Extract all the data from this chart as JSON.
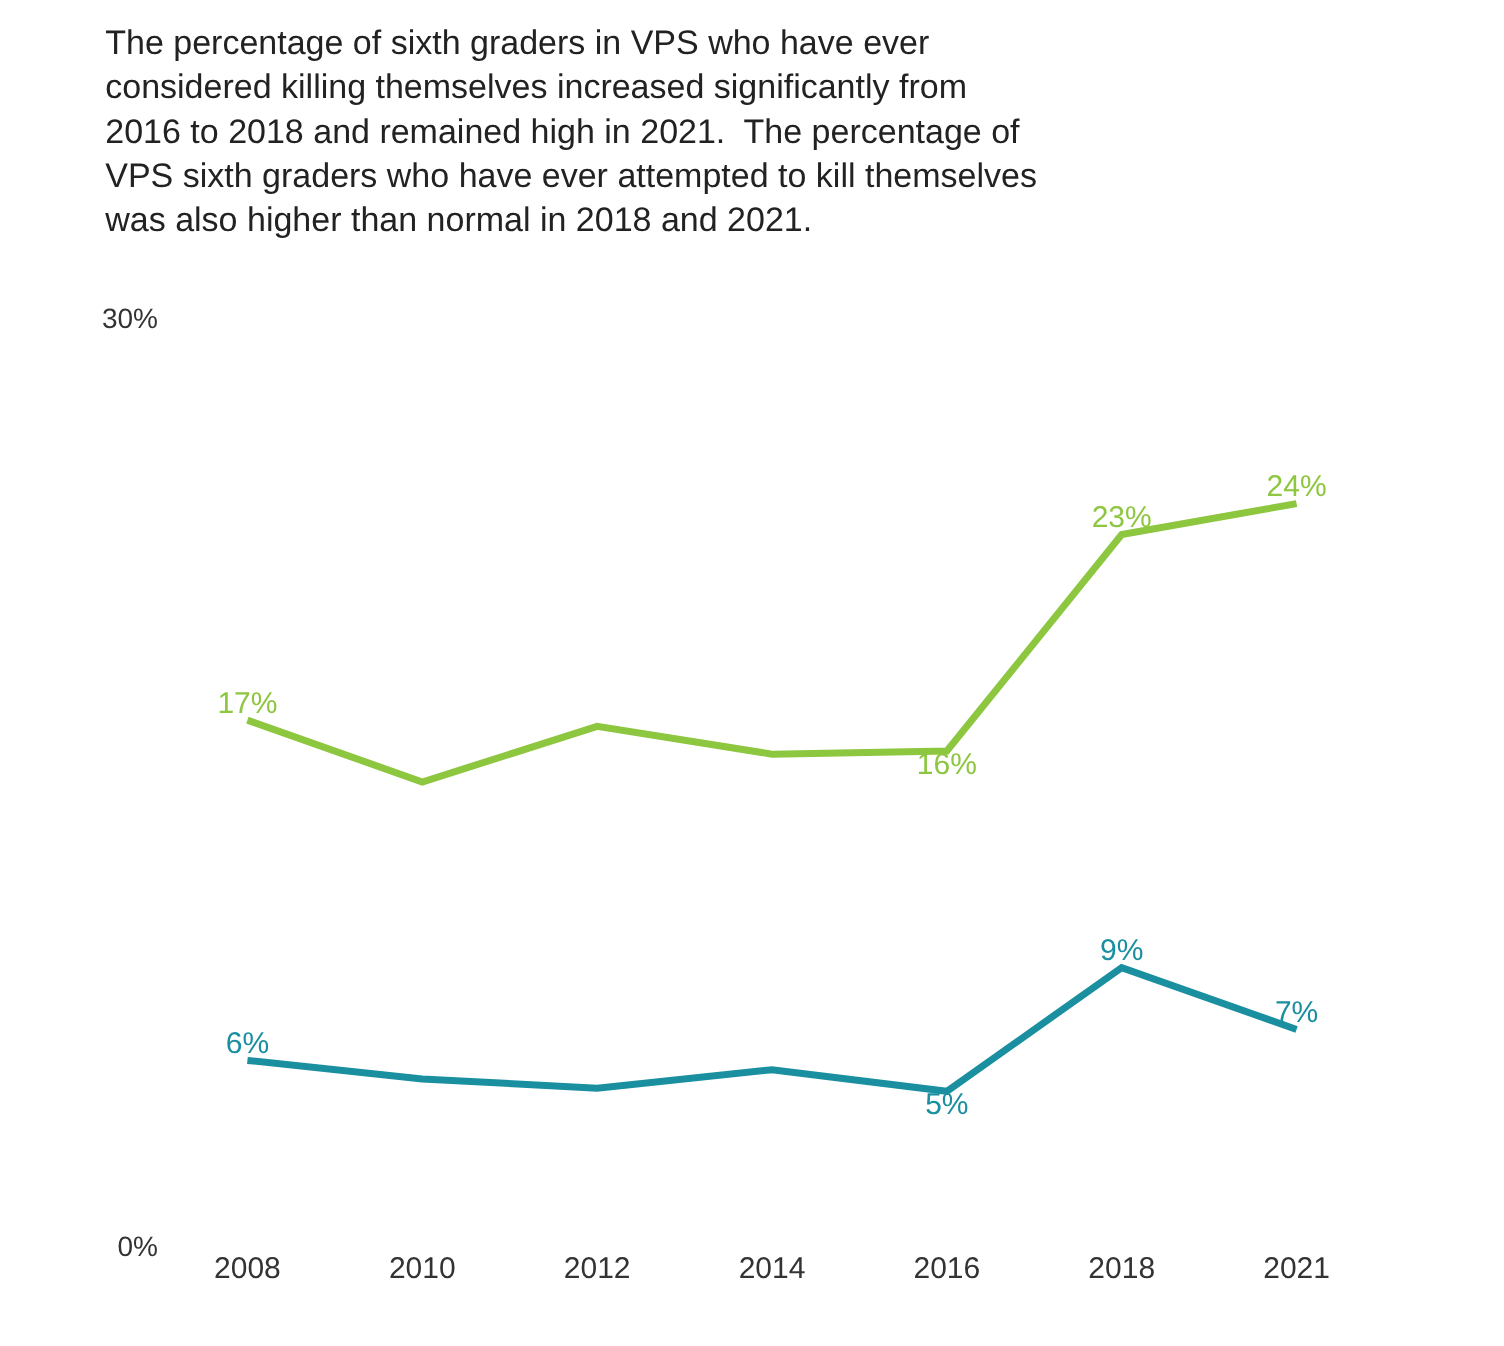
{
  "chart_data": {
    "type": "line",
    "title": "The percentage of sixth graders in VPS who have ever considered killing themselves increased significantly from 2016 to 2018 and remained high in 2021.  The percentage of VPS sixth graders who have ever attempted to kill themselves was also higher than normal in 2018 and 2021.",
    "categories": [
      "2008",
      "2010",
      "2012",
      "2014",
      "2016",
      "2018",
      "2021"
    ],
    "series": [
      {
        "color": "#8dc63f",
        "values": [
          17,
          15,
          16.8,
          15.9,
          16,
          23,
          24
        ],
        "value_labels": [
          "17%",
          null,
          null,
          null,
          "16%",
          "23%",
          "24%"
        ]
      },
      {
        "color": "#1a8fa0",
        "values": [
          6,
          5.4,
          5.1,
          5.7,
          5,
          9,
          7
        ],
        "value_labels": [
          "6%",
          null,
          null,
          null,
          "5%",
          "9%",
          "7%"
        ]
      }
    ],
    "ylim": [
      0,
      30
    ],
    "yticks": [
      {
        "value": 0,
        "label": "0%"
      },
      {
        "value": 30,
        "label": "30%"
      }
    ],
    "grid": false,
    "marker": "none",
    "line_style": "solid"
  }
}
